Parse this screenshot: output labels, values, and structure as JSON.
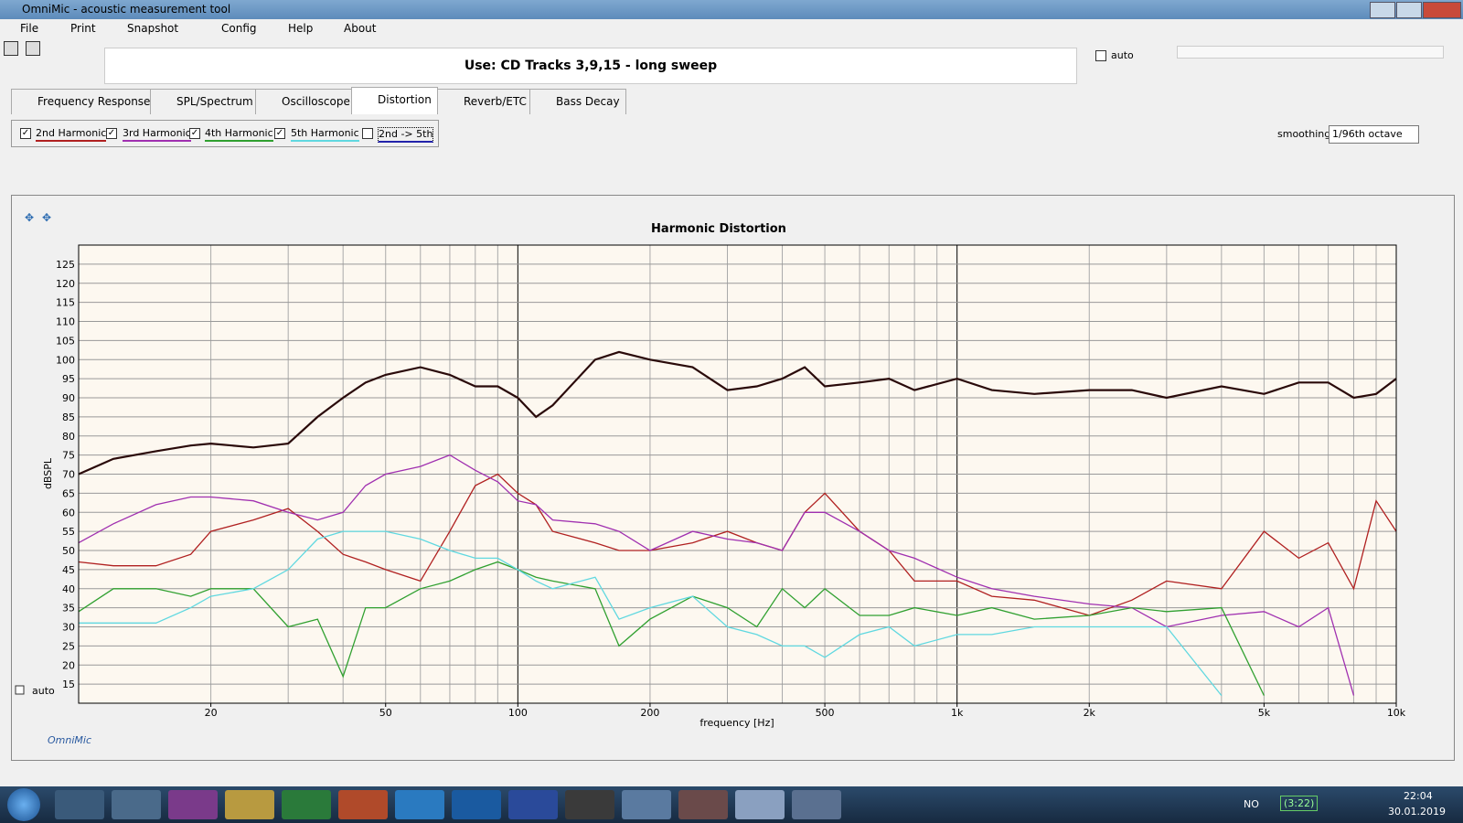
{
  "window": {
    "title": "OmniMic - acoustic measurement tool"
  },
  "menu": [
    "File",
    "Print",
    "Snapshot",
    "Config",
    "Help",
    "About"
  ],
  "instruction": "Use: CD Tracks 3,9,15 - long sweep",
  "top_auto": "auto",
  "tabs": [
    "Frequency Response",
    "SPL/Spectrum",
    "Oscilloscope",
    "Distortion",
    "Reverb/ETC",
    "Bass Decay"
  ],
  "range_option": "2nd -> 5th",
  "smoothing_label": "smoothing",
  "smoothing_value": "1/96th octave",
  "chart_auto": "auto",
  "brand": "OmniMic",
  "taskbar": {
    "language": "NO",
    "battery": "(3:22)",
    "time": "22:04",
    "date": "30.01.2019"
  },
  "chart_data": {
    "type": "line",
    "title": "Harmonic Distortion",
    "x_label": "frequency [Hz]",
    "y_label": "dBSPL",
    "log_x": true,
    "grid": true,
    "minor_grid": true,
    "xlim": [
      10,
      10000
    ],
    "ylim": [
      10,
      130
    ],
    "xticks": [
      20,
      50,
      100,
      200,
      500,
      {
        "value": 1000,
        "label": "1k"
      },
      {
        "value": 2000,
        "label": "2k"
      },
      {
        "value": 5000,
        "label": "5k"
      },
      {
        "value": 10000,
        "label": "10k"
      }
    ],
    "yticks": [
      15,
      20,
      25,
      30,
      35,
      40,
      45,
      50,
      55,
      60,
      65,
      70,
      75,
      80,
      85,
      90,
      95,
      100,
      105,
      110,
      115,
      120,
      125
    ],
    "x": [
      10,
      12,
      15,
      18,
      20,
      25,
      30,
      35,
      40,
      45,
      50,
      60,
      70,
      80,
      90,
      100,
      110,
      120,
      150,
      170,
      200,
      250,
      300,
      350,
      400,
      450,
      500,
      600,
      700,
      800,
      1000,
      1200,
      1500,
      2000,
      2500,
      3000,
      4000,
      5000,
      6000,
      7000,
      8000,
      9000,
      10000
    ],
    "series": [
      {
        "color": "#2a0a0a",
        "values": [
          70,
          74,
          76,
          77.5,
          78,
          77,
          78,
          85,
          90,
          94,
          96,
          98,
          96,
          93,
          93,
          90,
          85,
          88,
          100,
          102,
          100,
          98,
          92,
          93,
          95,
          98,
          93,
          94,
          95,
          92,
          95,
          92,
          91,
          92,
          92,
          90,
          93,
          91,
          94,
          94,
          90,
          91,
          95
        ]
      },
      {
        "name": "2nd Harmonic",
        "color": "#b02020",
        "values": [
          47,
          46,
          46,
          49,
          55,
          58,
          61,
          55,
          49,
          47,
          45,
          42,
          55,
          67,
          70,
          65,
          62,
          55,
          52,
          50,
          50,
          52,
          55,
          52,
          50,
          60,
          65,
          55,
          50,
          42,
          42,
          38,
          37,
          33,
          37,
          42,
          40,
          55,
          48,
          52,
          40,
          63,
          55
        ]
      },
      {
        "name": "3rd Harmonic",
        "color": "#a030b0",
        "values": [
          52,
          57,
          62,
          64,
          64,
          63,
          60,
          58,
          60,
          67,
          70,
          72,
          75,
          71,
          68,
          63,
          62,
          58,
          57,
          55,
          50,
          55,
          53,
          52,
          50,
          60,
          60,
          55,
          50,
          48,
          43,
          40,
          38,
          36,
          35,
          30,
          33,
          34,
          30,
          35,
          12,
          null,
          null
        ]
      },
      {
        "name": "4th Harmonic",
        "color": "#30a030",
        "values": [
          34,
          40,
          40,
          38,
          40,
          40,
          30,
          32,
          17,
          35,
          35,
          40,
          42,
          45,
          47,
          45,
          43,
          42,
          40,
          25,
          32,
          38,
          35,
          30,
          40,
          35,
          40,
          33,
          33,
          35,
          33,
          35,
          32,
          33,
          35,
          34,
          35,
          12,
          null,
          null,
          null,
          null,
          null
        ]
      },
      {
        "name": "5th Harmonic",
        "color": "#60d8e0",
        "values": [
          31,
          31,
          31,
          35,
          38,
          40,
          45,
          53,
          55,
          55,
          55,
          53,
          50,
          48,
          48,
          45,
          42,
          40,
          43,
          32,
          35,
          38,
          30,
          28,
          25,
          25,
          22,
          28,
          30,
          25,
          28,
          28,
          30,
          30,
          30,
          30,
          12,
          null,
          null,
          null,
          null,
          null,
          null
        ]
      }
    ]
  }
}
